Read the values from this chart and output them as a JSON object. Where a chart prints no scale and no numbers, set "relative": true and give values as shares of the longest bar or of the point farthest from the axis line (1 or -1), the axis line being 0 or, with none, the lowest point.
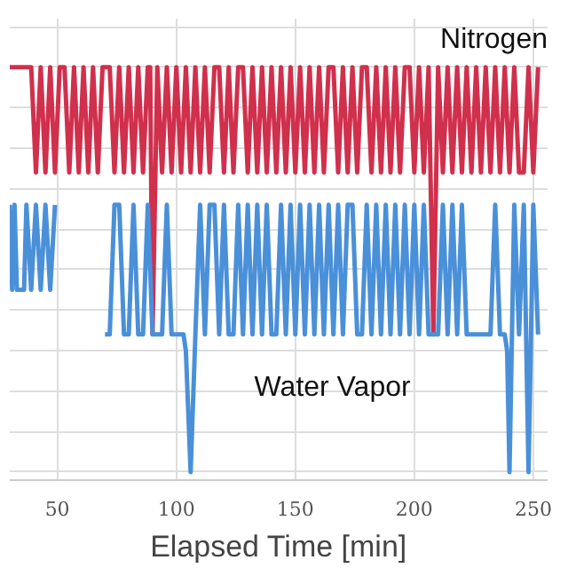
{
  "chart_data": {
    "type": "line",
    "xlabel": "Elapsed Time [min]",
    "relative": true,
    "xlim": [
      30,
      256
    ],
    "xticks": [
      50,
      100,
      150,
      200,
      250
    ],
    "grid": true,
    "series": [
      {
        "name": "Nitrogen",
        "color": "#d0304c",
        "x": [
          30,
          39,
          41,
          43,
          45,
          47,
          49,
          51,
          53,
          55,
          57,
          59,
          61,
          63,
          65,
          67,
          69,
          72,
          74,
          76,
          78,
          80,
          82,
          84,
          86,
          88,
          89,
          90,
          92,
          94,
          96,
          98,
          100,
          102,
          104,
          106,
          108,
          110,
          112,
          114,
          116,
          118,
          120,
          122,
          124,
          126,
          128,
          130,
          132,
          134,
          136,
          138,
          140,
          142,
          144,
          146,
          148,
          150,
          152,
          154,
          156,
          158,
          160,
          162,
          164,
          166,
          168,
          170,
          172,
          174,
          176,
          178,
          180,
          182,
          184,
          186,
          188,
          190,
          192,
          194,
          196,
          198,
          200,
          202,
          204,
          206,
          208,
          210,
          212,
          214,
          216,
          218,
          220,
          222,
          224,
          226,
          228,
          230,
          232,
          234,
          236,
          238,
          240,
          242,
          244,
          246,
          248,
          250,
          252
        ],
        "values": [
          1,
          1,
          0.74,
          1,
          0.74,
          1,
          0.74,
          1,
          1,
          0.74,
          1,
          0.74,
          1,
          0.74,
          1,
          0.74,
          1,
          1,
          0.74,
          1,
          0.74,
          1,
          0.74,
          1,
          0.74,
          1,
          1,
          0.34,
          1,
          0.74,
          1,
          0.74,
          1,
          0.74,
          1,
          0.74,
          1,
          0.74,
          1,
          0.74,
          1,
          1,
          0.74,
          1,
          0.74,
          1,
          1,
          0.74,
          1,
          0.74,
          1,
          0.74,
          1,
          0.74,
          1,
          0.74,
          1,
          0.74,
          1,
          0.74,
          1,
          0.74,
          1,
          0.74,
          1,
          1,
          0.74,
          1,
          0.74,
          1,
          0.74,
          1,
          1,
          0.74,
          1,
          0.74,
          1,
          0.74,
          1,
          0.74,
          1,
          1,
          0.74,
          1,
          0.74,
          1,
          0.34,
          1,
          0.74,
          1,
          0.74,
          1,
          0.74,
          1,
          0.74,
          1,
          0.74,
          1,
          0.74,
          1,
          0.74,
          1,
          0.74,
          1,
          0.74,
          0.74,
          1,
          0.74,
          1
        ]
      },
      {
        "name": "Water Vapor",
        "color": "#4a90d9",
        "x": [
          30,
          31,
          32,
          33,
          36,
          37,
          39,
          41,
          43,
          45,
          47,
          49,
          50,
          70,
          72,
          74,
          76,
          78,
          80,
          82,
          84,
          86,
          88,
          90,
          92,
          94,
          96,
          98,
          100,
          103,
          104,
          106,
          108,
          110,
          112,
          114,
          116,
          118,
          120,
          122,
          124,
          126,
          128,
          130,
          132,
          134,
          136,
          138,
          140,
          142,
          144,
          146,
          148,
          150,
          152,
          154,
          156,
          158,
          160,
          162,
          164,
          166,
          168,
          170,
          172,
          174,
          176,
          178,
          180,
          182,
          184,
          186,
          188,
          190,
          192,
          194,
          196,
          198,
          200,
          202,
          204,
          206,
          210,
          212,
          214,
          216,
          218,
          220,
          222,
          224,
          226,
          228,
          230,
          232,
          234,
          236,
          238,
          239,
          240,
          242,
          244,
          246,
          248,
          250,
          252
        ],
        "values": [
          0.66,
          0.45,
          0.66,
          0.45,
          0.45,
          0.66,
          0.45,
          0.66,
          0.45,
          0.66,
          0.45,
          0.66,
          null,
          0.34,
          0.34,
          0.66,
          0.66,
          0.34,
          0.34,
          0.66,
          0.34,
          0.34,
          0.66,
          0.34,
          0.34,
          0.34,
          0.66,
          0.34,
          0.34,
          0.34,
          0.3,
          0,
          0.34,
          0.66,
          0.34,
          0.66,
          0.66,
          0.34,
          0.66,
          0.34,
          0.34,
          0.66,
          0.34,
          0.66,
          0.34,
          0.66,
          0.34,
          0.66,
          0.34,
          0.34,
          0.66,
          0.34,
          0.66,
          0.34,
          0.66,
          0.34,
          0.66,
          0.34,
          0.66,
          0.34,
          0.66,
          0.34,
          0.66,
          0.34,
          0.66,
          0.66,
          0.34,
          0.34,
          0.66,
          0.34,
          0.66,
          0.34,
          0.66,
          0.34,
          0.66,
          0.34,
          0.66,
          0.34,
          0.66,
          0.34,
          0.66,
          0.34,
          0.34,
          0.66,
          0.34,
          0.66,
          0.34,
          0.66,
          0.34,
          0.34,
          0.34,
          0.34,
          0.34,
          0.34,
          0.66,
          0.34,
          0.34,
          0.3,
          0,
          0.66,
          0.34,
          0.66,
          0,
          0.66,
          0.34
        ]
      }
    ]
  }
}
